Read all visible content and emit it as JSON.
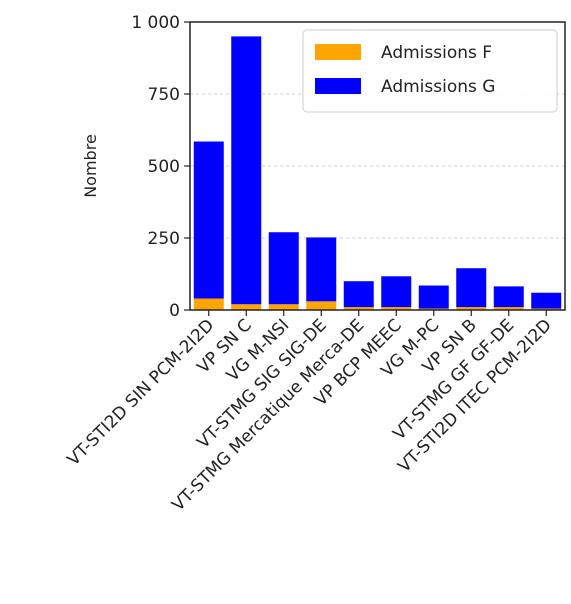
{
  "chart_data": {
    "type": "bar",
    "stacked": true,
    "categories": [
      "VT-STI2D SIN PCM-2I2D",
      "VP SN C",
      "VG M-NSI",
      "VT-STMG SIG SIG-DE",
      "VT-STMG Mercatique Merca-DE",
      "VP BCP MEEC",
      "VG M-PC",
      "VP SN B",
      "VT-STMG GF GF-DE",
      "VT-STI2D ITEC PCM-2I2D"
    ],
    "series": [
      {
        "name": "Admissions F",
        "color": "#FFA500",
        "values": [
          40,
          20,
          20,
          30,
          10,
          10,
          5,
          10,
          10,
          5
        ]
      },
      {
        "name": "Admissions G",
        "color": "#0000FF",
        "values": [
          545,
          930,
          250,
          222,
          90,
          107,
          80,
          135,
          72,
          55
        ]
      }
    ],
    "ylabel": "Nombre",
    "xlabel": "",
    "title": "",
    "ylim": [
      0,
      1000
    ],
    "yticks": [
      0,
      250,
      500,
      750,
      1000
    ],
    "ytick_labels": [
      "0",
      "250",
      "500",
      "750",
      "1 000"
    ],
    "grid": "horizontal-dashed",
    "legend": "top-right"
  }
}
